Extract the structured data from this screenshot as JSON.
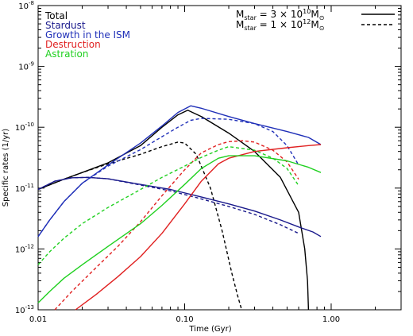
{
  "chart_data": {
    "type": "line",
    "xlabel": "Time (Gyr)",
    "ylabel": "Specific rates (1/yr)",
    "x_scale": "log",
    "y_scale": "log",
    "xlim": [
      0.01,
      3.0
    ],
    "ylim": [
      1e-13,
      1e-08
    ],
    "x_ticks": [
      {
        "value": 0.01,
        "label": "0.01"
      },
      {
        "value": 0.1,
        "label": "0.10"
      },
      {
        "value": 1.0,
        "label": "1.00"
      }
    ],
    "y_ticks": [
      {
        "value": 1e-13,
        "base": "10",
        "exp": "-13"
      },
      {
        "value": 1e-12,
        "base": "10",
        "exp": "-12"
      },
      {
        "value": 1e-11,
        "base": "10",
        "exp": "-11"
      },
      {
        "value": 1e-10,
        "base": "10",
        "exp": "-10"
      },
      {
        "value": 1e-09,
        "base": "10",
        "exp": "-9"
      },
      {
        "value": 1e-08,
        "base": "10",
        "exp": "-8"
      }
    ],
    "legend_colors": [
      {
        "label": "Total",
        "color": "#000000"
      },
      {
        "label": "Stardust",
        "color": "#1a1a8c"
      },
      {
        "label": "Growth in the ISM",
        "color": "#1f2fb8"
      },
      {
        "label": "Destruction",
        "color": "#e02020"
      },
      {
        "label": "Astration",
        "color": "#20d020"
      }
    ],
    "legend_linestyles": [
      {
        "text": "M",
        "sub": "star",
        "mid": " = 3 × 10",
        "sup": "10",
        "unit": "M",
        "unit_sub": "⊙",
        "style": "solid"
      },
      {
        "text": "M",
        "sub": "star",
        "mid": " = 1 × 10",
        "sup": "12",
        "unit": "M",
        "unit_sub": "⊙",
        "style": "dashed"
      }
    ],
    "series": [
      {
        "component": "Total",
        "model": "solid",
        "color": "#000000",
        "x": [
          0.01,
          0.015,
          0.02,
          0.03,
          0.05,
          0.07,
          0.09,
          0.105,
          0.13,
          0.2,
          0.3,
          0.45,
          0.6,
          0.66,
          0.69,
          0.7
        ],
        "y": [
          9.5e-12,
          1.4e-11,
          1.8e-11,
          2.6e-11,
          5e-11,
          1e-10,
          1.6e-10,
          1.9e-10,
          1.5e-10,
          8e-11,
          4e-11,
          1.5e-11,
          4e-12,
          1e-12,
          3e-13,
          1e-13
        ]
      },
      {
        "component": "Total",
        "model": "dashed",
        "color": "#000000",
        "x": [
          0.01,
          0.015,
          0.02,
          0.03,
          0.05,
          0.07,
          0.09,
          0.1,
          0.12,
          0.15,
          0.18,
          0.21,
          0.23,
          0.245
        ],
        "y": [
          9.5e-12,
          1.4e-11,
          1.8e-11,
          2.5e-11,
          3.6e-11,
          4.8e-11,
          5.7e-11,
          5.5e-11,
          3.6e-11,
          1e-11,
          2e-12,
          4e-13,
          1.7e-13,
          1e-13
        ]
      },
      {
        "component": "Stardust",
        "model": "solid",
        "color": "#1a1a8c",
        "x": [
          0.01,
          0.013,
          0.017,
          0.022,
          0.03,
          0.05,
          0.08,
          0.12,
          0.2,
          0.3,
          0.45,
          0.6,
          0.75,
          0.85
        ],
        "y": [
          9.5e-12,
          1.3e-11,
          1.48e-11,
          1.5e-11,
          1.42e-11,
          1.15e-11,
          9.5e-12,
          7.5e-12,
          5.5e-12,
          4.2e-12,
          3e-12,
          2.3e-12,
          1.9e-12,
          1.6e-12
        ]
      },
      {
        "component": "Stardust",
        "model": "dashed",
        "color": "#1a1a8c",
        "x": [
          0.01,
          0.013,
          0.017,
          0.022,
          0.03,
          0.05,
          0.08,
          0.12,
          0.2,
          0.3,
          0.45,
          0.6
        ],
        "y": [
          9.5e-12,
          1.3e-11,
          1.48e-11,
          1.5e-11,
          1.42e-11,
          1.12e-11,
          9e-12,
          7e-12,
          5e-12,
          3.7e-12,
          2.5e-12,
          1.8e-12
        ]
      },
      {
        "component": "Growth in the ISM",
        "model": "solid",
        "color": "#1f2fb8",
        "x": [
          0.01,
          0.012,
          0.015,
          0.02,
          0.03,
          0.05,
          0.07,
          0.09,
          0.11,
          0.13,
          0.2,
          0.3,
          0.5,
          0.7,
          0.85
        ],
        "y": [
          1.6e-12,
          3e-12,
          6e-12,
          1.2e-11,
          2.4e-11,
          5.5e-11,
          1.05e-10,
          1.75e-10,
          2.25e-10,
          2.05e-10,
          1.5e-10,
          1.15e-10,
          8.5e-11,
          6.8e-11,
          5.2e-11
        ]
      },
      {
        "component": "Growth in the ISM",
        "model": "dashed",
        "color": "#1f2fb8",
        "x": [
          0.01,
          0.012,
          0.015,
          0.02,
          0.03,
          0.05,
          0.07,
          0.09,
          0.11,
          0.13,
          0.2,
          0.3,
          0.4,
          0.5,
          0.6
        ],
        "y": [
          1.6e-12,
          3e-12,
          6e-12,
          1.2e-11,
          2.3e-11,
          4.3e-11,
          7e-11,
          1e-10,
          1.3e-10,
          1.4e-10,
          1.35e-10,
          1.15e-10,
          8.5e-11,
          5e-11,
          2.4e-11
        ]
      },
      {
        "component": "Destruction",
        "model": "solid",
        "color": "#e02020",
        "x": [
          0.018,
          0.025,
          0.035,
          0.05,
          0.07,
          0.1,
          0.13,
          0.17,
          0.2,
          0.3,
          0.5,
          0.7,
          0.85
        ],
        "y": [
          1e-13,
          1.8e-13,
          3.5e-13,
          7.5e-13,
          1.8e-12,
          5.5e-12,
          1.3e-11,
          2.5e-11,
          3.1e-11,
          4e-11,
          4.6e-11,
          5e-11,
          5.2e-11
        ]
      },
      {
        "component": "Destruction",
        "model": "dashed",
        "color": "#e02020",
        "x": [
          0.013,
          0.017,
          0.025,
          0.035,
          0.05,
          0.07,
          0.1,
          0.13,
          0.17,
          0.2,
          0.25,
          0.3,
          0.4,
          0.5,
          0.6
        ],
        "y": [
          1e-13,
          2e-13,
          5e-13,
          1.1e-12,
          2.8e-12,
          7.5e-12,
          2e-11,
          3.8e-11,
          5.2e-11,
          5.8e-11,
          6e-11,
          5.7e-11,
          4.2e-11,
          2.7e-11,
          1.4e-11
        ]
      },
      {
        "component": "Astration",
        "model": "solid",
        "color": "#20d020",
        "x": [
          0.01,
          0.012,
          0.015,
          0.02,
          0.03,
          0.05,
          0.07,
          0.1,
          0.13,
          0.17,
          0.2,
          0.3,
          0.5,
          0.7,
          0.85
        ],
        "y": [
          1.3e-13,
          2e-13,
          3.3e-13,
          5.5e-13,
          1.1e-12,
          2.6e-12,
          5.2e-12,
          1.15e-11,
          2.1e-11,
          3.1e-11,
          3.4e-11,
          3.4e-11,
          2.8e-11,
          2.2e-11,
          1.8e-11
        ]
      },
      {
        "component": "Astration",
        "model": "dashed",
        "color": "#20d020",
        "x": [
          0.01,
          0.012,
          0.015,
          0.02,
          0.03,
          0.05,
          0.07,
          0.1,
          0.13,
          0.17,
          0.2,
          0.3,
          0.4,
          0.5,
          0.6
        ],
        "y": [
          5.5e-13,
          9e-13,
          1.5e-12,
          2.6e-12,
          4.8e-12,
          9.5e-12,
          1.5e-11,
          2.3e-11,
          3.2e-11,
          4.2e-11,
          4.8e-11,
          4.2e-11,
          3.1e-11,
          2.1e-11,
          1.1e-11
        ]
      }
    ]
  }
}
